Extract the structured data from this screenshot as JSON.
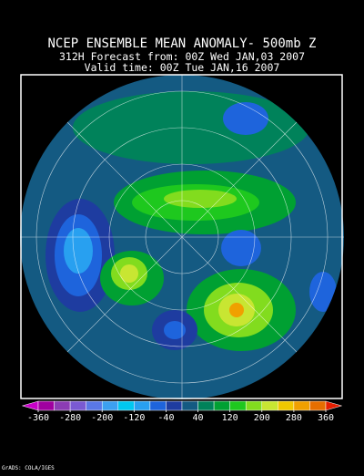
{
  "header": {
    "title": "NCEP ENSEMBLE MEAN ANOMALY- 500mb Z",
    "forecast": "312H Forecast from: 00Z Wed JAN,03 2007",
    "valid": "Valid time: 00Z Tue JAN,16 2007"
  },
  "colorbar": {
    "ticks": [
      -360,
      -280,
      -200,
      -120,
      -40,
      40,
      120,
      200,
      280,
      360
    ],
    "colors": [
      "#c800c8",
      "#a000a0",
      "#8c3cb4",
      "#7a5ad2",
      "#5a78e6",
      "#3ca0f0",
      "#00c8f0",
      "#28a0f0",
      "#1e64dc",
      "#1e3ca0",
      "#145a82",
      "#00825a",
      "#00a032",
      "#1ec81e",
      "#82dc1e",
      "#c8e632",
      "#f0c800",
      "#f0a000",
      "#e66e00",
      "#e61e00"
    ]
  },
  "footer": "GrADS: COLA/IGES"
}
